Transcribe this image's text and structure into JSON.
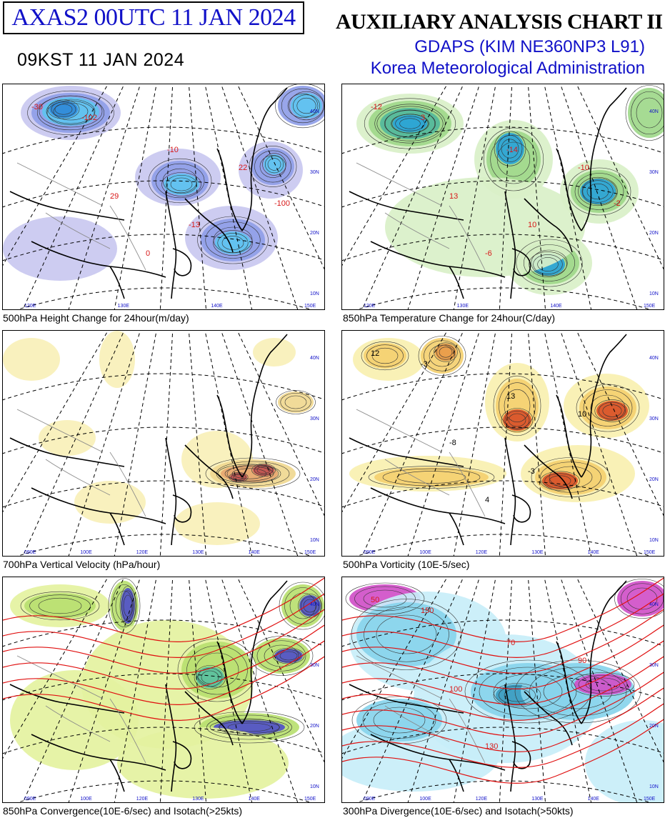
{
  "header": {
    "product_code": "AXAS2  00UTC 11 JAN 2024",
    "local_time": "09KST 11 JAN 2024",
    "title": "AUXILIARY ANALYSIS CHART II",
    "model": "GDAPS (KIM NE360NP3 L91)",
    "agency": "Korea Meteorological Administration"
  },
  "panels": [
    {
      "id": "p1",
      "caption": "500hPa Height Change for 24hour(m/day)",
      "palette": [
        "#c9c8f0",
        "#8f9ee8",
        "#5ec4f0",
        "#2f8ad8"
      ],
      "labels": [
        "-30",
        "-10",
        "22",
        "29",
        "0",
        "-102",
        "-13",
        "-100"
      ],
      "label_color": "#d81818",
      "lat_labels": [
        "40N",
        "30N",
        "20N",
        "10N"
      ],
      "lon_labels": [
        "120E",
        "130E",
        "140E",
        "150E"
      ]
    },
    {
      "id": "p2",
      "caption": "850hPa Temperature Change for 24hour(C/day)",
      "palette": [
        "#d9f0c8",
        "#9ed88a",
        "#52b89c",
        "#2aa4d8"
      ],
      "labels": [
        "-12",
        "-14",
        "-10",
        "13",
        "-6",
        "3",
        "10",
        "-2"
      ],
      "label_color": "#d81818",
      "lat_labels": [
        "40N",
        "30N",
        "20N",
        "10N"
      ],
      "lon_labels": [
        "120E",
        "130E",
        "140E",
        "150E"
      ]
    },
    {
      "id": "p3",
      "caption": "700hPa Vertical Velocity (hPa/hour)",
      "palette": [
        "#f8f0b8",
        "#f0d890",
        "#e8a870",
        "#c05050"
      ],
      "labels": [],
      "label_color": "#d81818",
      "lat_labels": [
        "40N",
        "30N",
        "20N",
        "10N"
      ],
      "lon_labels": [
        "090E",
        "100E",
        "120E",
        "130E",
        "140E",
        "150E"
      ]
    },
    {
      "id": "p4",
      "caption": "500hPa Vorticity (10E-5/sec)",
      "palette": [
        "#f8f0b0",
        "#f4d070",
        "#e89a48",
        "#d85028"
      ],
      "labels": [
        "12",
        "13",
        "10",
        "-8",
        "4",
        "-3",
        "-3"
      ],
      "label_color": "#000000",
      "lat_labels": [
        "40N",
        "30N",
        "20N",
        "10N"
      ],
      "lon_labels": [
        "090E",
        "100E",
        "120E",
        "130E",
        "140E",
        "150E"
      ]
    },
    {
      "id": "p5",
      "caption": "850hPa Convergence(10E-6/sec) and Isotach(>25kts)",
      "palette": [
        "#e4f2a0",
        "#b8e070",
        "#58c0a0",
        "#5050c8"
      ],
      "labels": [],
      "label_color": "#d81818",
      "lat_labels": [
        "40N",
        "30N",
        "20N",
        "10N"
      ],
      "lon_labels": [
        "090E",
        "100E",
        "120E",
        "130E",
        "140E",
        "150E"
      ]
    },
    {
      "id": "p6",
      "caption": "300hPa Divergence(10E-6/sec) and Isotach(>50kts)",
      "palette": [
        "#c8eef8",
        "#88d4ec",
        "#3c9cc0",
        "#d050c8"
      ],
      "labels": [
        "50",
        "70",
        "90",
        "100",
        "130",
        "150"
      ],
      "label_color": "#d81818",
      "lat_labels": [
        "40N",
        "30N",
        "20N",
        "10N"
      ],
      "lon_labels": [
        "090E",
        "100E",
        "120E",
        "130E",
        "140E",
        "150E"
      ]
    }
  ]
}
